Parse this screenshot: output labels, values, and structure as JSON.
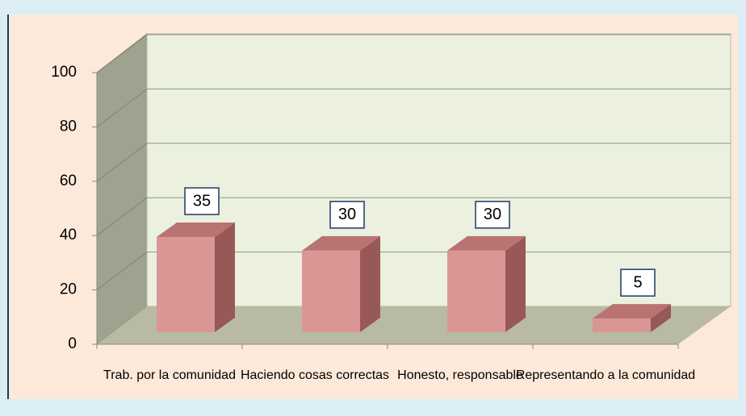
{
  "chart_data": {
    "type": "bar3d",
    "categories": [
      "Trab. por la comunidad",
      "Haciendo cosas correctas",
      "Honesto, responsable",
      "Representando a la comunidad"
    ],
    "values": [
      35,
      30,
      30,
      5
    ],
    "color": "#d99694",
    "ylim": [
      0,
      100
    ],
    "yticks": [
      0,
      20,
      40,
      60,
      80,
      100
    ],
    "grid": true
  }
}
